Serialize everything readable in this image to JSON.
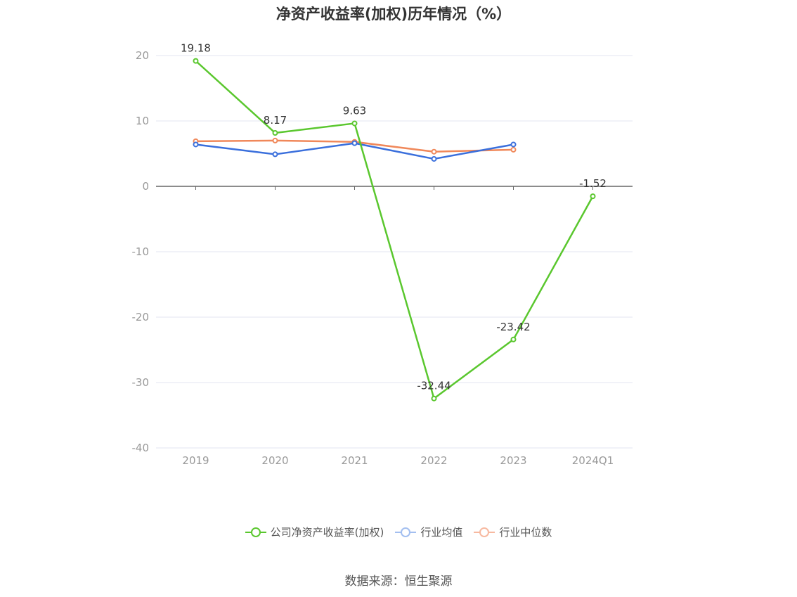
{
  "title": "净资产收益率(加权)历年情况（%）",
  "source": "数据来源：恒生聚源",
  "colors": {
    "company": "#5ac72e",
    "industry_avg": "#3a6fdc",
    "industry_median": "#f0885a",
    "legend_avg": "#a3bff0",
    "legend_median": "#f7b9a0",
    "grid": "#e3e6f0",
    "axis": "#666666",
    "tick_label": "#999999"
  },
  "chart_data": {
    "type": "line",
    "categories": [
      "2019",
      "2020",
      "2021",
      "2022",
      "2023",
      "2024Q1"
    ],
    "ylim": [
      -40,
      20
    ],
    "yticks": [
      20,
      10,
      0,
      -10,
      -20,
      -30,
      -40
    ],
    "grid": true,
    "legend_position": "bottom",
    "series": [
      {
        "name": "公司净资产收益率(加权)",
        "values": [
          19.18,
          8.17,
          9.63,
          -32.44,
          -23.42,
          -1.52
        ],
        "labels": [
          "19.18",
          "8.17",
          "9.63",
          "-32.44",
          "-23.42",
          "-1.52"
        ]
      },
      {
        "name": "行业均值",
        "values": [
          6.4,
          4.9,
          6.6,
          4.2,
          6.4,
          null
        ]
      },
      {
        "name": "行业中位数",
        "values": [
          6.9,
          7.0,
          6.8,
          5.3,
          5.6,
          null
        ]
      }
    ]
  }
}
